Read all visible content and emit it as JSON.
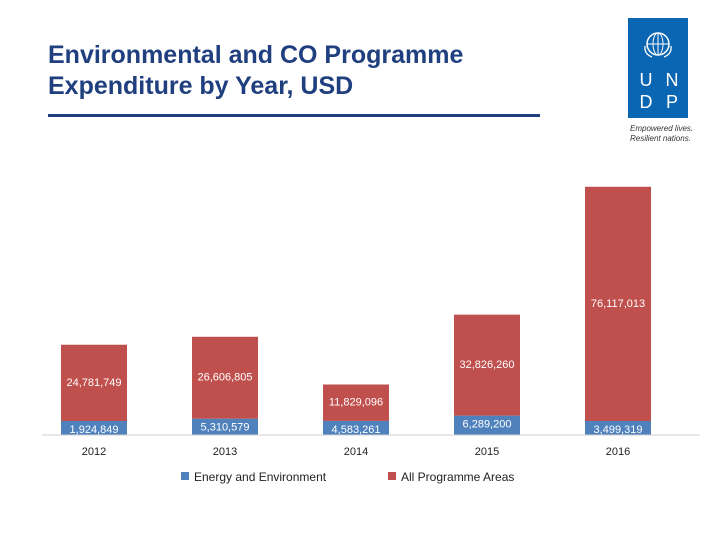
{
  "title_line1": "Environmental and CO Programme",
  "title_line2": "Expenditure by Year, USD",
  "logo": {
    "letters": [
      "U",
      "N",
      "D",
      "P"
    ],
    "tagline_line1": "Empowered lives.",
    "tagline_line2": "Resilient nations."
  },
  "colors": {
    "title": "#1f3f7f",
    "logo_blue": "#0a66b2",
    "energy": "#4f81bd",
    "programme": "#c0504d"
  },
  "chart_data": {
    "type": "bar",
    "stacked": true,
    "title": "Environmental and CO Programme Expenditure by Year, USD",
    "categories": [
      "2012",
      "2013",
      "2014",
      "2015",
      "2016"
    ],
    "series": [
      {
        "name": "Energy and Environment",
        "values": [
          1924849,
          5310579,
          4583261,
          6289200,
          3499319
        ],
        "labels": [
          "1,924,849",
          "5,310,579",
          "4,583,261",
          "6,289,200",
          "3,499,319"
        ]
      },
      {
        "name": "All Programme Areas",
        "values": [
          24781749,
          26606805,
          11829096,
          32826260,
          76117013
        ],
        "labels": [
          "24,781,749",
          "26,606,805",
          "11,829,096",
          "32,826,260",
          "76,117,013"
        ]
      }
    ],
    "legend": "bottom",
    "grid": false,
    "xlabel": "",
    "ylabel": ""
  }
}
